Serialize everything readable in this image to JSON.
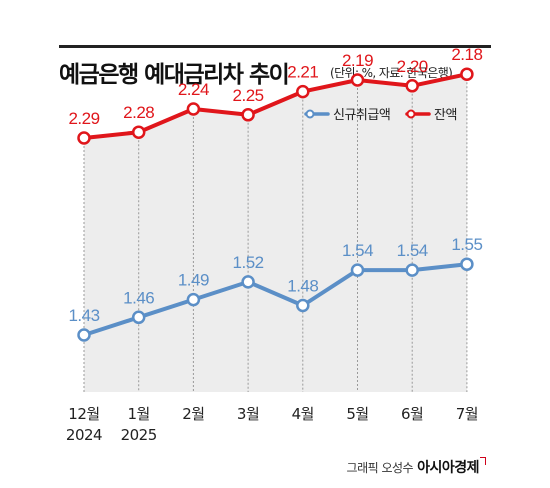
{
  "header": {
    "title": "예금은행 예대금리차 추이",
    "subtitle": "(단위: %, 자료: 한국은행)"
  },
  "footer": {
    "credit": "그래픽 오성수",
    "brand": "아시아경제"
  },
  "colors": {
    "series_blue": "#5b8fc7",
    "series_red": "#e0161b",
    "area": "#ededed"
  },
  "chart_data": {
    "type": "line",
    "categories": [
      "12월\n2024",
      "1월\n2025",
      "2월",
      "3월",
      "4월",
      "5월",
      "6월",
      "7월"
    ],
    "series": [
      {
        "name": "신규취급액",
        "values": [
          1.43,
          1.46,
          1.49,
          1.52,
          1.48,
          1.54,
          1.54,
          1.55
        ],
        "color": "#5b8fc7"
      },
      {
        "name": "잔액",
        "values": [
          2.29,
          2.28,
          2.24,
          2.25,
          2.21,
          2.19,
          2.2,
          2.18
        ],
        "color": "#e0161b"
      }
    ],
    "data_labels": {
      "신규취급액": [
        "1.43",
        "1.46",
        "1.49",
        "1.52",
        "1.48",
        "1.54",
        "1.54",
        "1.55"
      ],
      "잔액": [
        "2.29",
        "2.28",
        "2.24",
        "2.25",
        "2.21",
        "2.19",
        "2.20",
        "2.18"
      ]
    },
    "legend": "top-right",
    "grid": false
  }
}
